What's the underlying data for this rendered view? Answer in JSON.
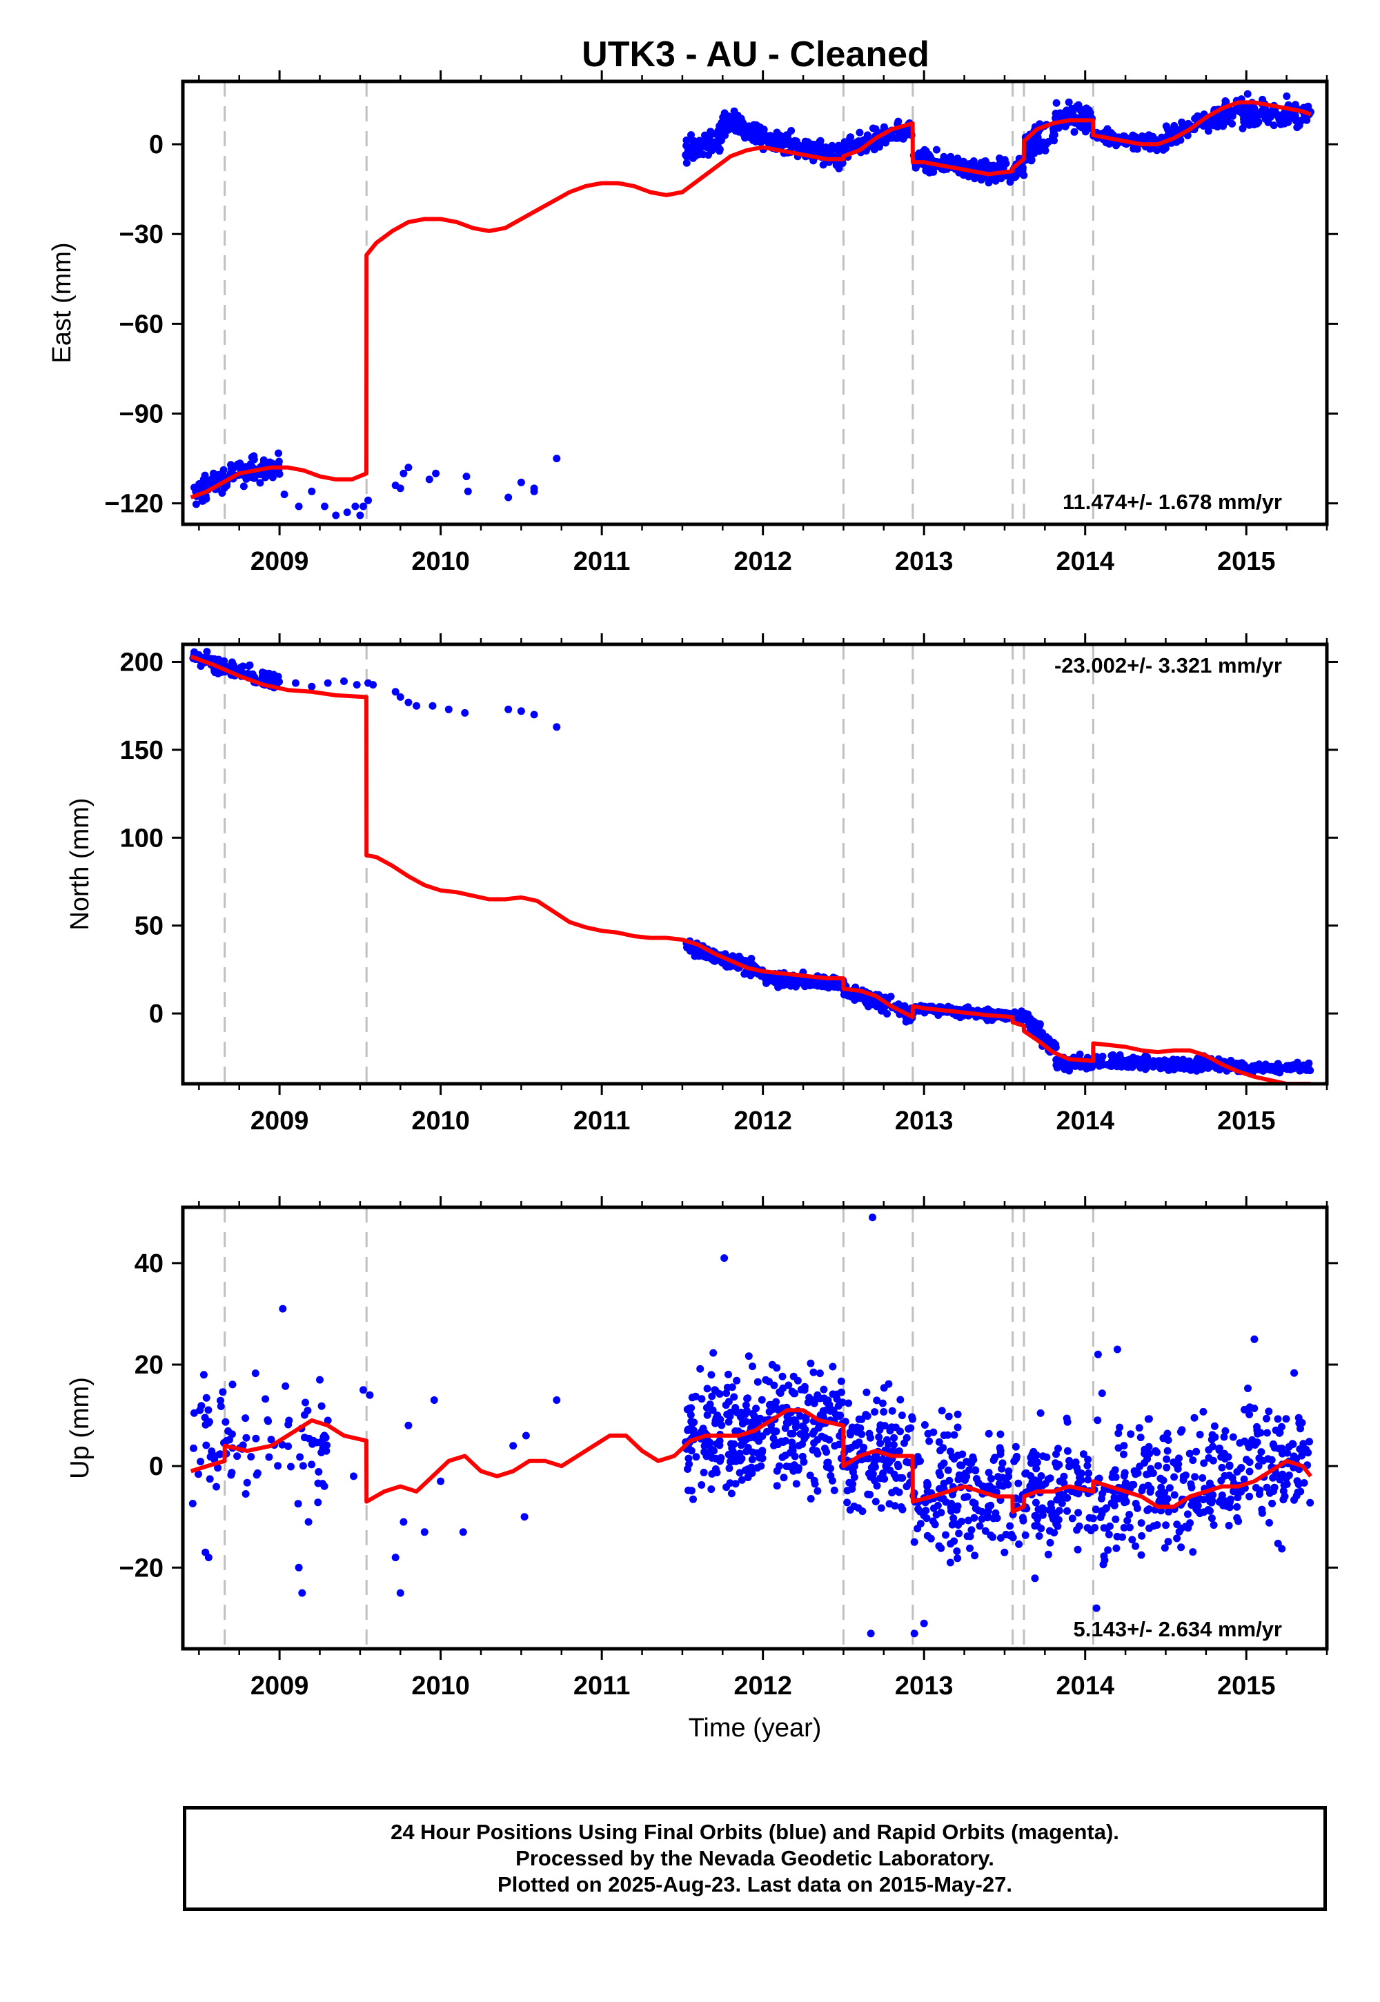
{
  "title": "UTK3  - AU - Cleaned",
  "xlabel": "Time (year)",
  "footer": {
    "line1": "24 Hour Positions Using Final Orbits (blue) and Rapid Orbits (magenta).",
    "line2": "Processed by the Nevada Geodetic Laboratory.",
    "line3": "Plotted on 2025-Aug-23. Last data on 2015-May-27."
  },
  "colors": {
    "points": "#0000ff",
    "model": "#ff0000",
    "events": "#c0c0c0",
    "frame": "#000000"
  },
  "chart_data": [
    {
      "type": "scatter",
      "panel": "east",
      "ylabel": "East (mm)",
      "rate_label": "11.474+/- 1.678 mm/yr",
      "xlim": [
        2008.4,
        2015.5
      ],
      "ylim": [
        -127,
        21
      ],
      "xticks": [
        2009,
        2010,
        2011,
        2012,
        2013,
        2014,
        2015
      ],
      "yticks": [
        -120,
        -90,
        -60,
        -30,
        0
      ],
      "ytick_labels": [
        "−120",
        "−90",
        "−60",
        "−30",
        "0"
      ],
      "event_lines": [
        2008.66,
        2009.54,
        2012.5,
        2012.93,
        2013.55,
        2013.62,
        2014.05
      ],
      "model_x": [
        2008.45,
        2008.55,
        2008.65,
        2008.75,
        2008.85,
        2008.95,
        2009.05,
        2009.15,
        2009.25,
        2009.35,
        2009.45,
        2009.539,
        2009.54,
        2009.6,
        2009.7,
        2009.8,
        2009.9,
        2010.0,
        2010.1,
        2010.2,
        2010.3,
        2010.4,
        2010.5,
        2010.6,
        2010.7,
        2010.8,
        2010.9,
        2011.0,
        2011.1,
        2011.2,
        2011.3,
        2011.4,
        2011.5,
        2011.6,
        2011.7,
        2011.8,
        2011.9,
        2012.0,
        2012.1,
        2012.2,
        2012.3,
        2012.4,
        2012.499,
        2012.5,
        2012.6,
        2012.7,
        2012.8,
        2012.929,
        2012.93,
        2013.0,
        2013.1,
        2013.2,
        2013.3,
        2013.4,
        2013.549,
        2013.55,
        2013.619,
        2013.62,
        2013.7,
        2013.8,
        2013.9,
        2014.049,
        2014.05,
        2014.15,
        2014.25,
        2014.35,
        2014.45,
        2014.55,
        2014.65,
        2014.75,
        2014.85,
        2014.95,
        2015.05,
        2015.15,
        2015.25,
        2015.35,
        2015.4
      ],
      "model_y": [
        -118,
        -116,
        -113,
        -110,
        -109,
        -108,
        -108,
        -109,
        -111,
        -112,
        -112,
        -110,
        -37,
        -33,
        -29,
        -26,
        -25,
        -25,
        -26,
        -28,
        -29,
        -28,
        -25,
        -22,
        -19,
        -16,
        -14,
        -13,
        -13,
        -14,
        -16,
        -17,
        -16,
        -12,
        -8,
        -4,
        -2,
        -1,
        -2,
        -3,
        -4,
        -5,
        -5,
        -4,
        -2,
        2,
        5,
        7,
        -6,
        -6,
        -7,
        -8,
        -9,
        -10,
        -9,
        -8,
        -5,
        1,
        5,
        7,
        8,
        8,
        3,
        2,
        1,
        0,
        0,
        2,
        5,
        9,
        12,
        14,
        14,
        13,
        12,
        11,
        10
      ],
      "segments": [
        {
          "x0": 2008.46,
          "x1": 2008.7,
          "y0": -118,
          "y1": -110,
          "spread": 3,
          "n": 60
        },
        {
          "x0": 2008.7,
          "x1": 2009.0,
          "y0": -110,
          "y1": -108,
          "spread": 3,
          "n": 70
        },
        {
          "x0": 2011.52,
          "x1": 2011.75,
          "y0": -2,
          "y1": 3,
          "spread": 3,
          "n": 75
        },
        {
          "x0": 2011.75,
          "x1": 2012.0,
          "y0": 8,
          "y1": 3,
          "spread": 3,
          "n": 80
        },
        {
          "x0": 2012.0,
          "x1": 2012.5,
          "y0": 2,
          "y1": -4,
          "spread": 2.5,
          "n": 150
        },
        {
          "x0": 2012.5,
          "x1": 2012.93,
          "y0": -2,
          "y1": 5,
          "spread": 2.5,
          "n": 110
        },
        {
          "x0": 2012.93,
          "x1": 2013.3,
          "y0": -5,
          "y1": -8,
          "spread": 2.5,
          "n": 100
        },
        {
          "x0": 2013.3,
          "x1": 2013.62,
          "y0": -10,
          "y1": -8,
          "spread": 2.5,
          "n": 90
        },
        {
          "x0": 2013.62,
          "x1": 2013.82,
          "y0": -2,
          "y1": 6,
          "spread": 4,
          "n": 60
        },
        {
          "x0": 2013.82,
          "x1": 2014.05,
          "y0": 10,
          "y1": 8,
          "spread": 3,
          "n": 70
        },
        {
          "x0": 2014.05,
          "x1": 2014.5,
          "y0": 3,
          "y1": 0,
          "spread": 2,
          "n": 120
        },
        {
          "x0": 2014.5,
          "x1": 2014.85,
          "y0": 2,
          "y1": 10,
          "spread": 2.5,
          "n": 90
        },
        {
          "x0": 2014.85,
          "x1": 2015.4,
          "y0": 11,
          "y1": 10,
          "spread": 3,
          "n": 140
        }
      ],
      "points": [
        [
          2009.03,
          -117
        ],
        [
          2009.12,
          -121
        ],
        [
          2009.2,
          -116
        ],
        [
          2009.28,
          -121
        ],
        [
          2009.35,
          -124
        ],
        [
          2009.42,
          -123
        ],
        [
          2009.47,
          -121
        ],
        [
          2009.5,
          -124
        ],
        [
          2009.52,
          -121
        ],
        [
          2009.55,
          -119
        ],
        [
          2009.72,
          -114
        ],
        [
          2009.77,
          -110
        ],
        [
          2009.8,
          -108
        ],
        [
          2009.75,
          -115
        ],
        [
          2009.93,
          -112
        ],
        [
          2009.97,
          -110
        ],
        [
          2010.16,
          -111
        ],
        [
          2010.17,
          -116
        ],
        [
          2010.42,
          -118
        ],
        [
          2010.5,
          -113
        ],
        [
          2010.58,
          -115
        ],
        [
          2010.72,
          -105
        ],
        [
          2010.58,
          -116
        ]
      ]
    },
    {
      "type": "scatter",
      "panel": "north",
      "ylabel": "North (mm)",
      "rate_label": "-23.002+/- 3.321 mm/yr",
      "xlim": [
        2008.4,
        2015.5
      ],
      "ylim": [
        -40,
        210
      ],
      "xticks": [
        2009,
        2010,
        2011,
        2012,
        2013,
        2014,
        2015
      ],
      "yticks": [
        0,
        50,
        100,
        150,
        200
      ],
      "ytick_labels": [
        "0",
        "50",
        "100",
        "150",
        "200"
      ],
      "event_lines": [
        2008.66,
        2009.54,
        2012.5,
        2012.93,
        2013.55,
        2013.62,
        2014.05
      ],
      "model_x": [
        2008.45,
        2008.6,
        2008.75,
        2008.9,
        2009.05,
        2009.2,
        2009.35,
        2009.539,
        2009.54,
        2009.6,
        2009.7,
        2009.8,
        2009.9,
        2010.0,
        2010.1,
        2010.2,
        2010.3,
        2010.4,
        2010.5,
        2010.6,
        2010.7,
        2010.8,
        2010.9,
        2011.0,
        2011.1,
        2011.2,
        2011.3,
        2011.4,
        2011.5,
        2011.6,
        2011.7,
        2011.8,
        2011.9,
        2012.0,
        2012.1,
        2012.2,
        2012.3,
        2012.4,
        2012.499,
        2012.5,
        2012.6,
        2012.7,
        2012.8,
        2012.929,
        2012.93,
        2013.0,
        2013.1,
        2013.2,
        2013.3,
        2013.4,
        2013.549,
        2013.55,
        2013.619,
        2013.62,
        2013.7,
        2013.8,
        2013.9,
        2014.049,
        2014.05,
        2014.15,
        2014.25,
        2014.35,
        2014.45,
        2014.55,
        2014.65,
        2014.75,
        2014.85,
        2014.95,
        2015.05,
        2015.15,
        2015.25,
        2015.35,
        2015.4
      ],
      "model_y": [
        203,
        198,
        192,
        187,
        184,
        183,
        181,
        180,
        90,
        89,
        84,
        78,
        73,
        70,
        69,
        67,
        65,
        65,
        66,
        64,
        58,
        52,
        49,
        47,
        46,
        44,
        43,
        43,
        42,
        39,
        34,
        30,
        26,
        24,
        23,
        22,
        21,
        20,
        20,
        14,
        13,
        10,
        4,
        -2,
        4,
        3,
        2,
        1,
        0,
        -1,
        -2,
        -5,
        -7,
        -10,
        -15,
        -22,
        -26,
        -27,
        -17,
        -18,
        -19,
        -21,
        -22,
        -21,
        -21,
        -24,
        -29,
        -33,
        -36,
        -38,
        -40,
        -40,
        -40
      ],
      "segments": [
        {
          "x0": 2008.46,
          "x1": 2009.0,
          "y0": 203,
          "y1": 188,
          "spread": 3,
          "n": 130
        },
        {
          "x0": 2011.52,
          "x1": 2012.0,
          "y0": 38,
          "y1": 24,
          "spread": 3,
          "n": 150
        },
        {
          "x0": 2012.0,
          "x1": 2012.5,
          "y0": 20,
          "y1": 17,
          "spread": 2.5,
          "n": 150
        },
        {
          "x0": 2012.5,
          "x1": 2012.93,
          "y0": 14,
          "y1": -1,
          "spread": 3,
          "n": 110
        },
        {
          "x0": 2012.93,
          "x1": 2013.62,
          "y0": 3,
          "y1": -2,
          "spread": 2,
          "n": 190
        },
        {
          "x0": 2013.62,
          "x1": 2013.82,
          "y0": -2,
          "y1": -20,
          "spread": 4,
          "n": 60
        },
        {
          "x0": 2013.82,
          "x1": 2014.05,
          "y0": -28,
          "y1": -28,
          "spread": 2.5,
          "n": 70
        },
        {
          "x0": 2014.05,
          "x1": 2015.0,
          "y0": -27,
          "y1": -30,
          "spread": 2.5,
          "n": 250
        },
        {
          "x0": 2015.0,
          "x1": 2015.4,
          "y0": -31,
          "y1": -31,
          "spread": 2,
          "n": 100
        }
      ],
      "points": [
        [
          2009.1,
          188
        ],
        [
          2009.2,
          186
        ],
        [
          2009.3,
          188
        ],
        [
          2009.4,
          189
        ],
        [
          2009.48,
          187
        ],
        [
          2009.55,
          188
        ],
        [
          2009.58,
          187
        ],
        [
          2009.72,
          183
        ],
        [
          2009.75,
          180
        ],
        [
          2009.8,
          177
        ],
        [
          2009.85,
          175
        ],
        [
          2009.95,
          175
        ],
        [
          2010.05,
          173
        ],
        [
          2010.15,
          171
        ],
        [
          2010.42,
          173
        ],
        [
          2010.5,
          172
        ],
        [
          2010.58,
          170
        ],
        [
          2010.72,
          163
        ]
      ]
    },
    {
      "type": "scatter",
      "panel": "up",
      "ylabel": "Up (mm)",
      "rate_label": "5.143+/- 2.634 mm/yr",
      "xlim": [
        2008.4,
        2015.5
      ],
      "ylim": [
        -36,
        51
      ],
      "xticks": [
        2009,
        2010,
        2011,
        2012,
        2013,
        2014,
        2015
      ],
      "yticks": [
        -20,
        0,
        20,
        40
      ],
      "ytick_labels": [
        "−20",
        "0",
        "20",
        "40"
      ],
      "event_lines": [
        2008.66,
        2009.54,
        2012.5,
        2012.93,
        2013.55,
        2013.62,
        2014.05
      ],
      "model_x": [
        2008.45,
        2008.55,
        2008.659,
        2008.66,
        2008.8,
        2008.95,
        2009.1,
        2009.2,
        2009.3,
        2009.4,
        2009.539,
        2009.54,
        2009.65,
        2009.75,
        2009.85,
        2009.95,
        2010.05,
        2010.15,
        2010.25,
        2010.35,
        2010.45,
        2010.55,
        2010.65,
        2010.75,
        2010.85,
        2010.95,
        2011.05,
        2011.15,
        2011.25,
        2011.35,
        2011.45,
        2011.55,
        2011.65,
        2011.75,
        2011.85,
        2011.95,
        2012.05,
        2012.15,
        2012.25,
        2012.35,
        2012.499,
        2012.5,
        2012.6,
        2012.7,
        2012.8,
        2012.929,
        2012.93,
        2013.05,
        2013.15,
        2013.25,
        2013.35,
        2013.45,
        2013.549,
        2013.55,
        2013.619,
        2013.62,
        2013.7,
        2013.8,
        2013.9,
        2014.049,
        2014.05,
        2014.15,
        2014.25,
        2014.35,
        2014.45,
        2014.55,
        2014.65,
        2014.75,
        2014.85,
        2014.95,
        2015.05,
        2015.15,
        2015.25,
        2015.35,
        2015.4
      ],
      "model_y": [
        -1,
        0,
        1,
        4,
        3,
        4,
        7,
        9,
        8,
        6,
        5,
        -7,
        -5,
        -4,
        -5,
        -2,
        1,
        2,
        -1,
        -2,
        -1,
        1,
        1,
        0,
        2,
        4,
        6,
        6,
        3,
        1,
        2,
        5,
        6,
        6,
        6,
        7,
        9,
        11,
        11,
        9,
        8,
        0,
        2,
        3,
        2,
        2,
        -7,
        -6,
        -5,
        -4,
        -5,
        -6,
        -6,
        -9,
        -8,
        -6,
        -5,
        -5,
        -4,
        -5,
        -3,
        -4,
        -5,
        -6,
        -8,
        -8,
        -6,
        -5,
        -4,
        -4,
        -3,
        -1,
        1,
        0,
        -2
      ],
      "segments": [
        {
          "x0": 2008.46,
          "x1": 2009.3,
          "y0": 4,
          "y1": 5,
          "spread": 8,
          "n": 90
        },
        {
          "x0": 2011.52,
          "x1": 2012.0,
          "y0": 5,
          "y1": 7,
          "spread": 8,
          "n": 180
        },
        {
          "x0": 2012.0,
          "x1": 2012.5,
          "y0": 9,
          "y1": 8,
          "spread": 8,
          "n": 170
        },
        {
          "x0": 2012.5,
          "x1": 2012.93,
          "y0": 2,
          "y1": 2,
          "spread": 9,
          "n": 130
        },
        {
          "x0": 2012.93,
          "x1": 2013.62,
          "y0": -4,
          "y1": -6,
          "spread": 9,
          "n": 190
        },
        {
          "x0": 2013.62,
          "x1": 2014.05,
          "y0": -5,
          "y1": -4,
          "spread": 9,
          "n": 120
        },
        {
          "x0": 2014.05,
          "x1": 2015.0,
          "y0": -4,
          "y1": -3,
          "spread": 9,
          "n": 250
        },
        {
          "x0": 2015.0,
          "x1": 2015.4,
          "y0": 0,
          "y1": -1,
          "spread": 9,
          "n": 100
        }
      ],
      "points": [
        [
          2008.54,
          -17
        ],
        [
          2008.56,
          -18
        ],
        [
          2008.53,
          18
        ],
        [
          2009.02,
          31
        ],
        [
          2009.12,
          -20
        ],
        [
          2009.14,
          -25
        ],
        [
          2009.18,
          -11
        ],
        [
          2009.21,
          5
        ],
        [
          2009.25,
          17
        ],
        [
          2009.3,
          9
        ],
        [
          2009.46,
          -2
        ],
        [
          2009.52,
          15
        ],
        [
          2009.56,
          14
        ],
        [
          2009.72,
          -18
        ],
        [
          2009.75,
          -25
        ],
        [
          2009.77,
          -11
        ],
        [
          2009.8,
          8
        ],
        [
          2009.9,
          -13
        ],
        [
          2009.96,
          13
        ],
        [
          2010.0,
          -3
        ],
        [
          2010.14,
          -13
        ],
        [
          2010.45,
          4
        ],
        [
          2010.52,
          -10
        ],
        [
          2010.72,
          13
        ],
        [
          2010.53,
          6
        ],
        [
          2011.76,
          41
        ],
        [
          2012.68,
          49
        ],
        [
          2012.67,
          -33
        ],
        [
          2012.94,
          -33
        ],
        [
          2013.0,
          -31
        ],
        [
          2014.07,
          -28
        ],
        [
          2014.08,
          22
        ],
        [
          2014.2,
          23
        ],
        [
          2015.05,
          25
        ]
      ]
    }
  ]
}
